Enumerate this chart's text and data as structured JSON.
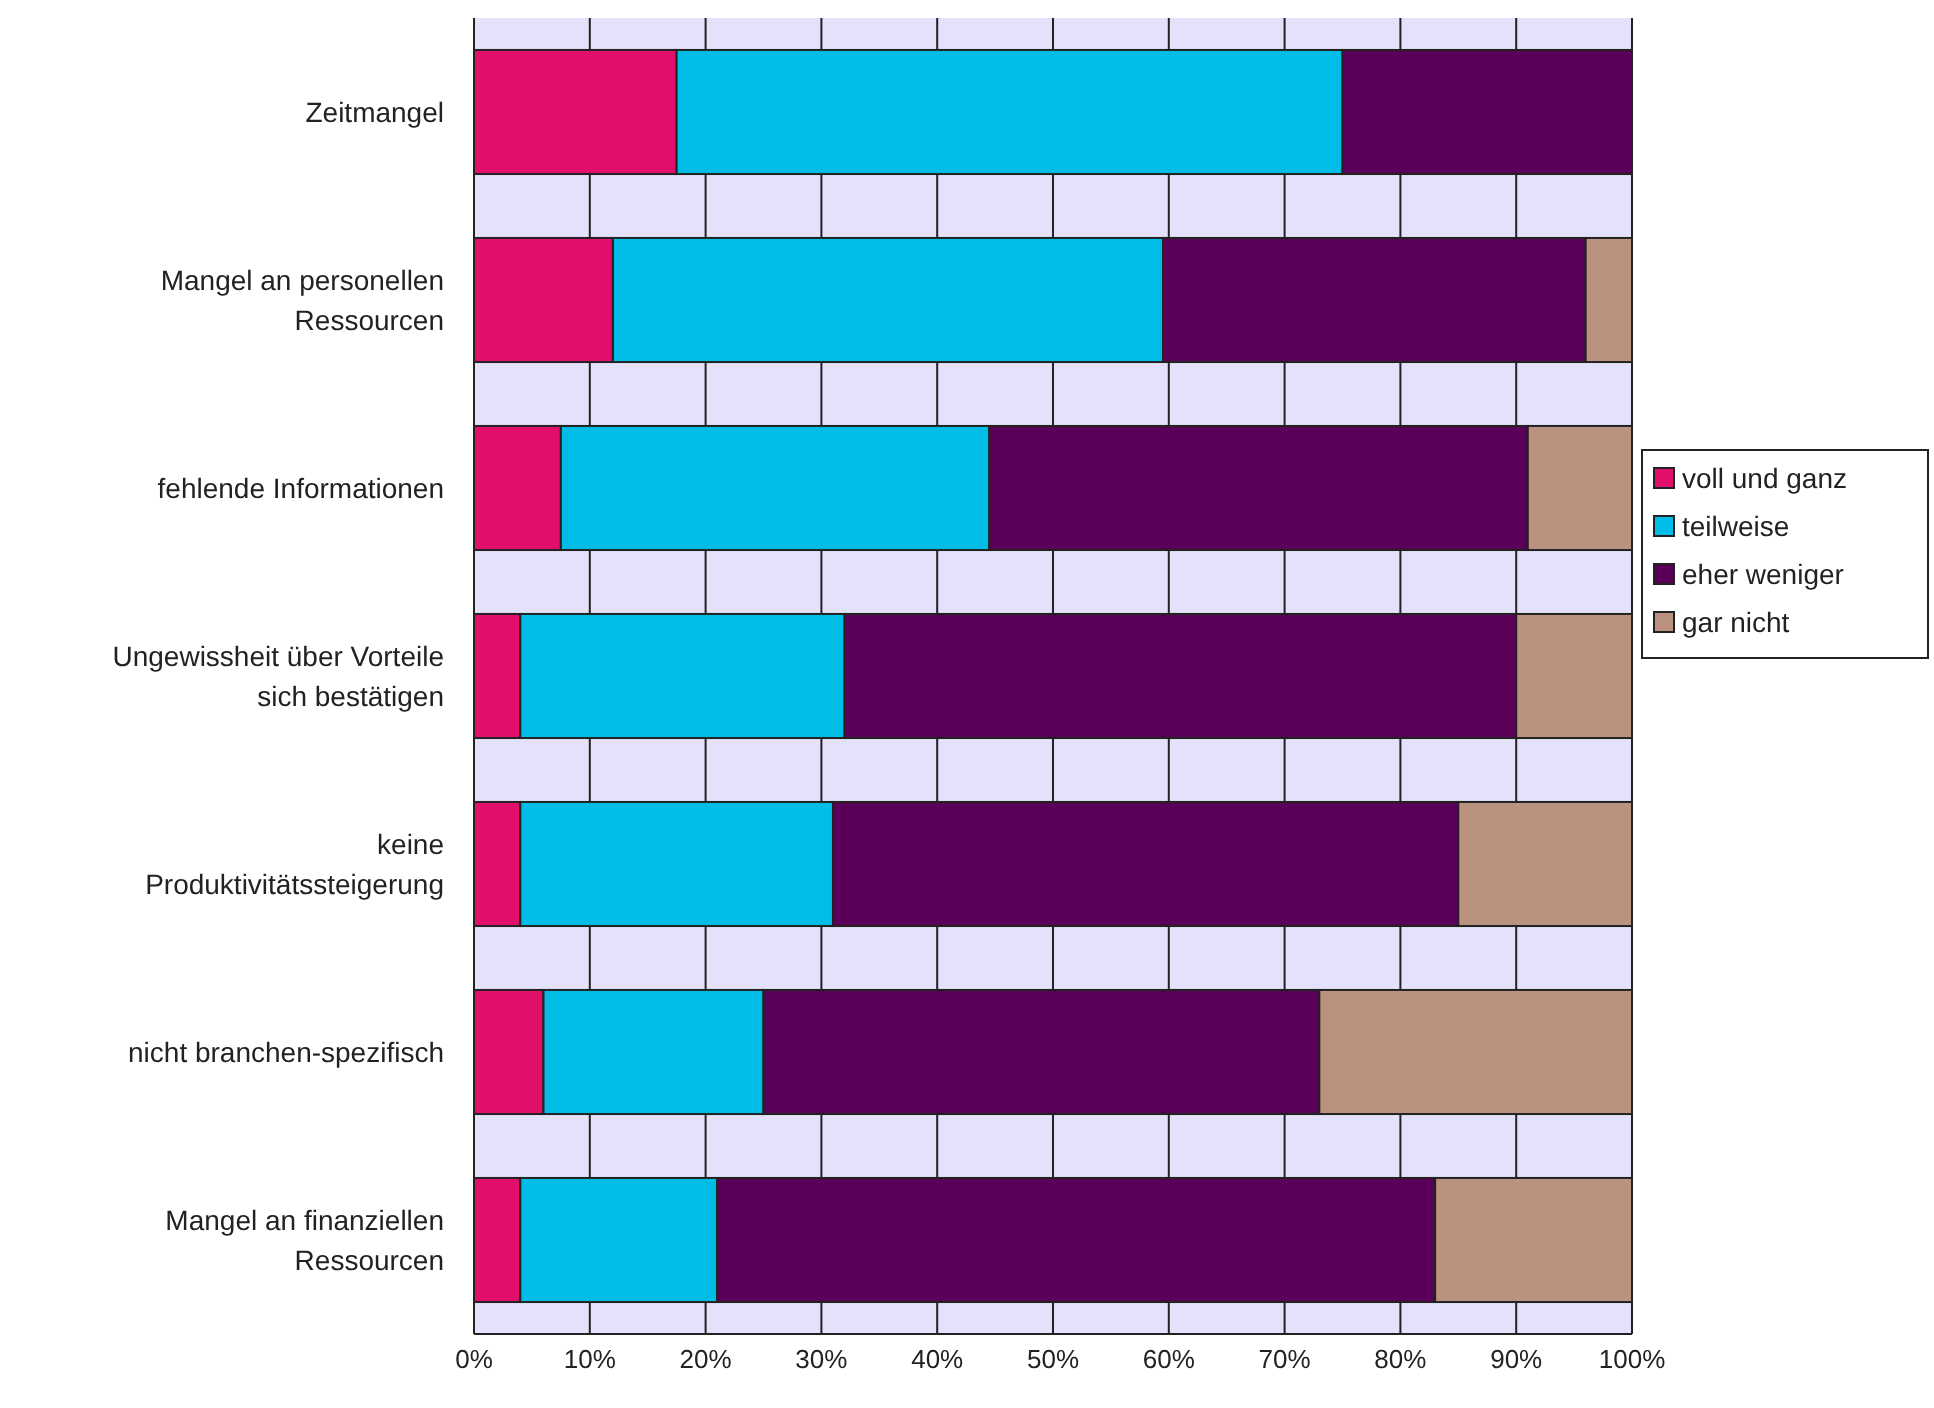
{
  "chart_data": {
    "type": "bar",
    "orientation": "horizontal",
    "stacked": true,
    "categories": [
      "Zeitmangel",
      "Mangel an personellen Ressourcen",
      "fehlende Informationen",
      "Ungewissheit über Vorteile sich bestätigen",
      "keine Produktivitätssteigerung",
      "nicht branchen-spezifisch",
      "Mangel an finanziellen Ressourcen"
    ],
    "series": [
      {
        "name": "voll und ganz",
        "color": "#e0106a",
        "values": [
          17.5,
          12,
          7.5,
          4,
          4,
          6,
          4
        ]
      },
      {
        "name": "teilweise",
        "color": "#00bde8",
        "values": [
          57.5,
          47.5,
          37,
          28,
          27,
          19,
          17
        ]
      },
      {
        "name": "eher weniger",
        "color": "#5a0058",
        "values": [
          25,
          36.5,
          46.5,
          58,
          54,
          48,
          62
        ]
      },
      {
        "name": "gar nicht",
        "color": "#bb9280",
        "values": [
          0,
          4,
          9,
          10,
          15,
          27,
          17
        ]
      }
    ],
    "xlim": [
      0,
      100
    ],
    "xticks": [
      {
        "value": 0,
        "label": "0%"
      },
      {
        "value": 10,
        "label": "10%"
      },
      {
        "value": 20,
        "label": "20%"
      },
      {
        "value": 30,
        "label": "30%"
      },
      {
        "value": 40,
        "label": "40%"
      },
      {
        "value": 50,
        "label": "50%"
      },
      {
        "value": 60,
        "label": "60%"
      },
      {
        "value": 70,
        "label": "70%"
      },
      {
        "value": 80,
        "label": "80%"
      },
      {
        "value": 90,
        "label": "90%"
      },
      {
        "value": 100,
        "label": "100%"
      }
    ],
    "grid": "x",
    "legend": "right"
  }
}
